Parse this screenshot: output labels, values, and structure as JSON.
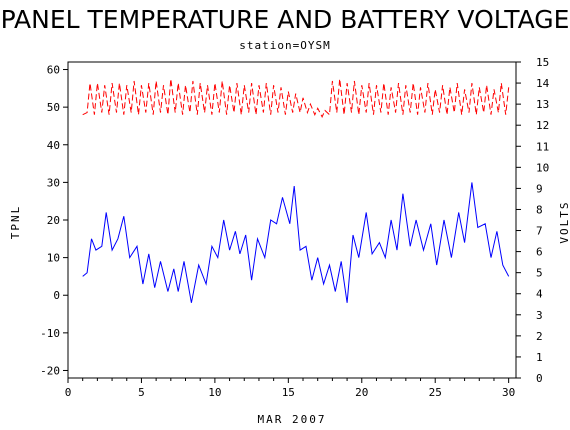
{
  "chart_data": {
    "type": "line",
    "title": "PANEL TEMPERATURE AND BATTERY VOLTAGE",
    "subtitle": "station=OYSM",
    "xlabel": "MAR 2007",
    "ylabel_left": "TPNL",
    "ylabel_right": "VOLTS",
    "xlim": [
      0,
      30.5
    ],
    "ylim_left": [
      -22,
      62
    ],
    "ylim_right": [
      0,
      15
    ],
    "x_ticks": [
      "0",
      "5",
      "10",
      "15",
      "20",
      "25",
      "30"
    ],
    "y_ticks_left": [
      "-20",
      "-10",
      "0",
      "10",
      "20",
      "30",
      "40",
      "50",
      "60"
    ],
    "y_ticks_right": [
      "0",
      "1",
      "2",
      "3",
      "4",
      "5",
      "6",
      "7",
      "8",
      "9",
      "10",
      "11",
      "12",
      "13",
      "14",
      "15"
    ],
    "series": [
      {
        "axis": "left",
        "color": "#0000ff",
        "x": [
          1.0,
          1.3,
          1.6,
          1.9,
          2.3,
          2.6,
          3.0,
          3.4,
          3.8,
          4.2,
          4.7,
          5.1,
          5.5,
          5.9,
          6.3,
          6.8,
          7.2,
          7.5,
          7.9,
          8.4,
          8.9,
          9.4,
          9.8,
          10.2,
          10.6,
          11.0,
          11.4,
          11.7,
          12.1,
          12.5,
          12.9,
          13.4,
          13.8,
          14.2,
          14.6,
          15.1,
          15.4,
          15.8,
          16.2,
          16.6,
          17.0,
          17.4,
          17.8,
          18.2,
          18.6,
          19.0,
          19.4,
          19.8,
          20.3,
          20.7,
          21.2,
          21.6,
          22.0,
          22.4,
          22.8,
          23.3,
          23.7,
          24.2,
          24.7,
          25.1,
          25.6,
          26.1,
          26.6,
          27.0,
          27.5,
          27.9,
          28.4,
          28.8,
          29.2,
          29.6,
          30.0
        ],
        "values": [
          5,
          6,
          15,
          12,
          13,
          22,
          12,
          15,
          21,
          10,
          13,
          3,
          11,
          2,
          9,
          1,
          7,
          1,
          9,
          -2,
          8,
          3,
          13,
          10,
          20,
          12,
          17,
          11,
          16,
          4,
          15,
          10,
          20,
          19,
          26,
          19,
          29,
          12,
          13,
          4,
          10,
          3,
          8,
          1,
          9,
          -2,
          16,
          10,
          22,
          11,
          14,
          10,
          20,
          12,
          27,
          13,
          20,
          12,
          19,
          8,
          20,
          10,
          22,
          14,
          30,
          18,
          19,
          10,
          17,
          8,
          5
        ]
      },
      {
        "axis": "right",
        "color": "#ff0000",
        "dashed": true,
        "x": [
          1.0,
          1.3,
          1.5,
          1.8,
          2.0,
          2.3,
          2.5,
          2.8,
          3.0,
          3.3,
          3.5,
          3.8,
          4.0,
          4.3,
          4.5,
          4.8,
          5.0,
          5.3,
          5.5,
          5.8,
          6.0,
          6.3,
          6.5,
          6.8,
          7.0,
          7.3,
          7.5,
          7.8,
          8.0,
          8.3,
          8.5,
          8.8,
          9.0,
          9.3,
          9.5,
          9.8,
          10.0,
          10.3,
          10.5,
          10.8,
          11.0,
          11.3,
          11.5,
          11.8,
          12.0,
          12.3,
          12.5,
          12.8,
          13.0,
          13.3,
          13.5,
          13.8,
          14.0,
          14.3,
          14.5,
          14.8,
          15.0,
          15.3,
          15.5,
          15.8,
          16.0,
          16.3,
          16.5,
          16.8,
          17.0,
          17.3,
          17.5,
          17.8,
          18.0,
          18.3,
          18.5,
          18.8,
          19.0,
          19.3,
          19.5,
          19.8,
          20.0,
          20.3,
          20.5,
          20.8,
          21.0,
          21.3,
          21.5,
          21.8,
          22.0,
          22.3,
          22.5,
          22.8,
          23.0,
          23.3,
          23.5,
          23.8,
          24.0,
          24.3,
          24.5,
          24.8,
          25.0,
          25.3,
          25.5,
          25.8,
          26.0,
          26.3,
          26.5,
          26.8,
          27.0,
          27.3,
          27.5,
          27.8,
          28.0,
          28.3,
          28.5,
          28.8,
          29.0,
          29.3,
          29.5,
          29.8,
          30.0
        ],
        "values": [
          12.5,
          12.6,
          14.0,
          12.5,
          14.0,
          12.6,
          13.9,
          12.5,
          14.0,
          12.6,
          14.0,
          12.5,
          13.9,
          12.6,
          14.1,
          12.5,
          13.9,
          12.6,
          14.0,
          12.5,
          14.1,
          12.6,
          13.9,
          12.5,
          14.2,
          12.6,
          14.0,
          12.5,
          13.9,
          12.6,
          14.1,
          12.5,
          14.0,
          12.6,
          13.9,
          12.5,
          14.0,
          12.6,
          14.1,
          12.5,
          13.9,
          12.6,
          14.0,
          12.5,
          13.9,
          12.6,
          14.0,
          12.5,
          13.9,
          12.6,
          14.0,
          12.5,
          13.9,
          12.6,
          13.8,
          12.5,
          13.6,
          12.6,
          13.5,
          12.6,
          13.3,
          12.6,
          13.0,
          12.5,
          12.8,
          12.4,
          12.7,
          12.5,
          14.1,
          12.6,
          14.2,
          12.5,
          14.0,
          12.6,
          14.1,
          12.5,
          13.9,
          12.6,
          14.0,
          12.5,
          13.9,
          12.6,
          14.0,
          12.5,
          13.8,
          12.6,
          14.0,
          12.5,
          13.9,
          12.6,
          14.0,
          12.5,
          13.8,
          12.6,
          14.0,
          12.5,
          13.7,
          12.6,
          13.9,
          12.5,
          13.8,
          12.6,
          14.0,
          12.5,
          13.7,
          12.6,
          14.0,
          12.5,
          13.8,
          12.6,
          13.9,
          12.5,
          13.7,
          12.6,
          14.0,
          12.5,
          13.8
        ]
      }
    ],
    "grid": false
  }
}
